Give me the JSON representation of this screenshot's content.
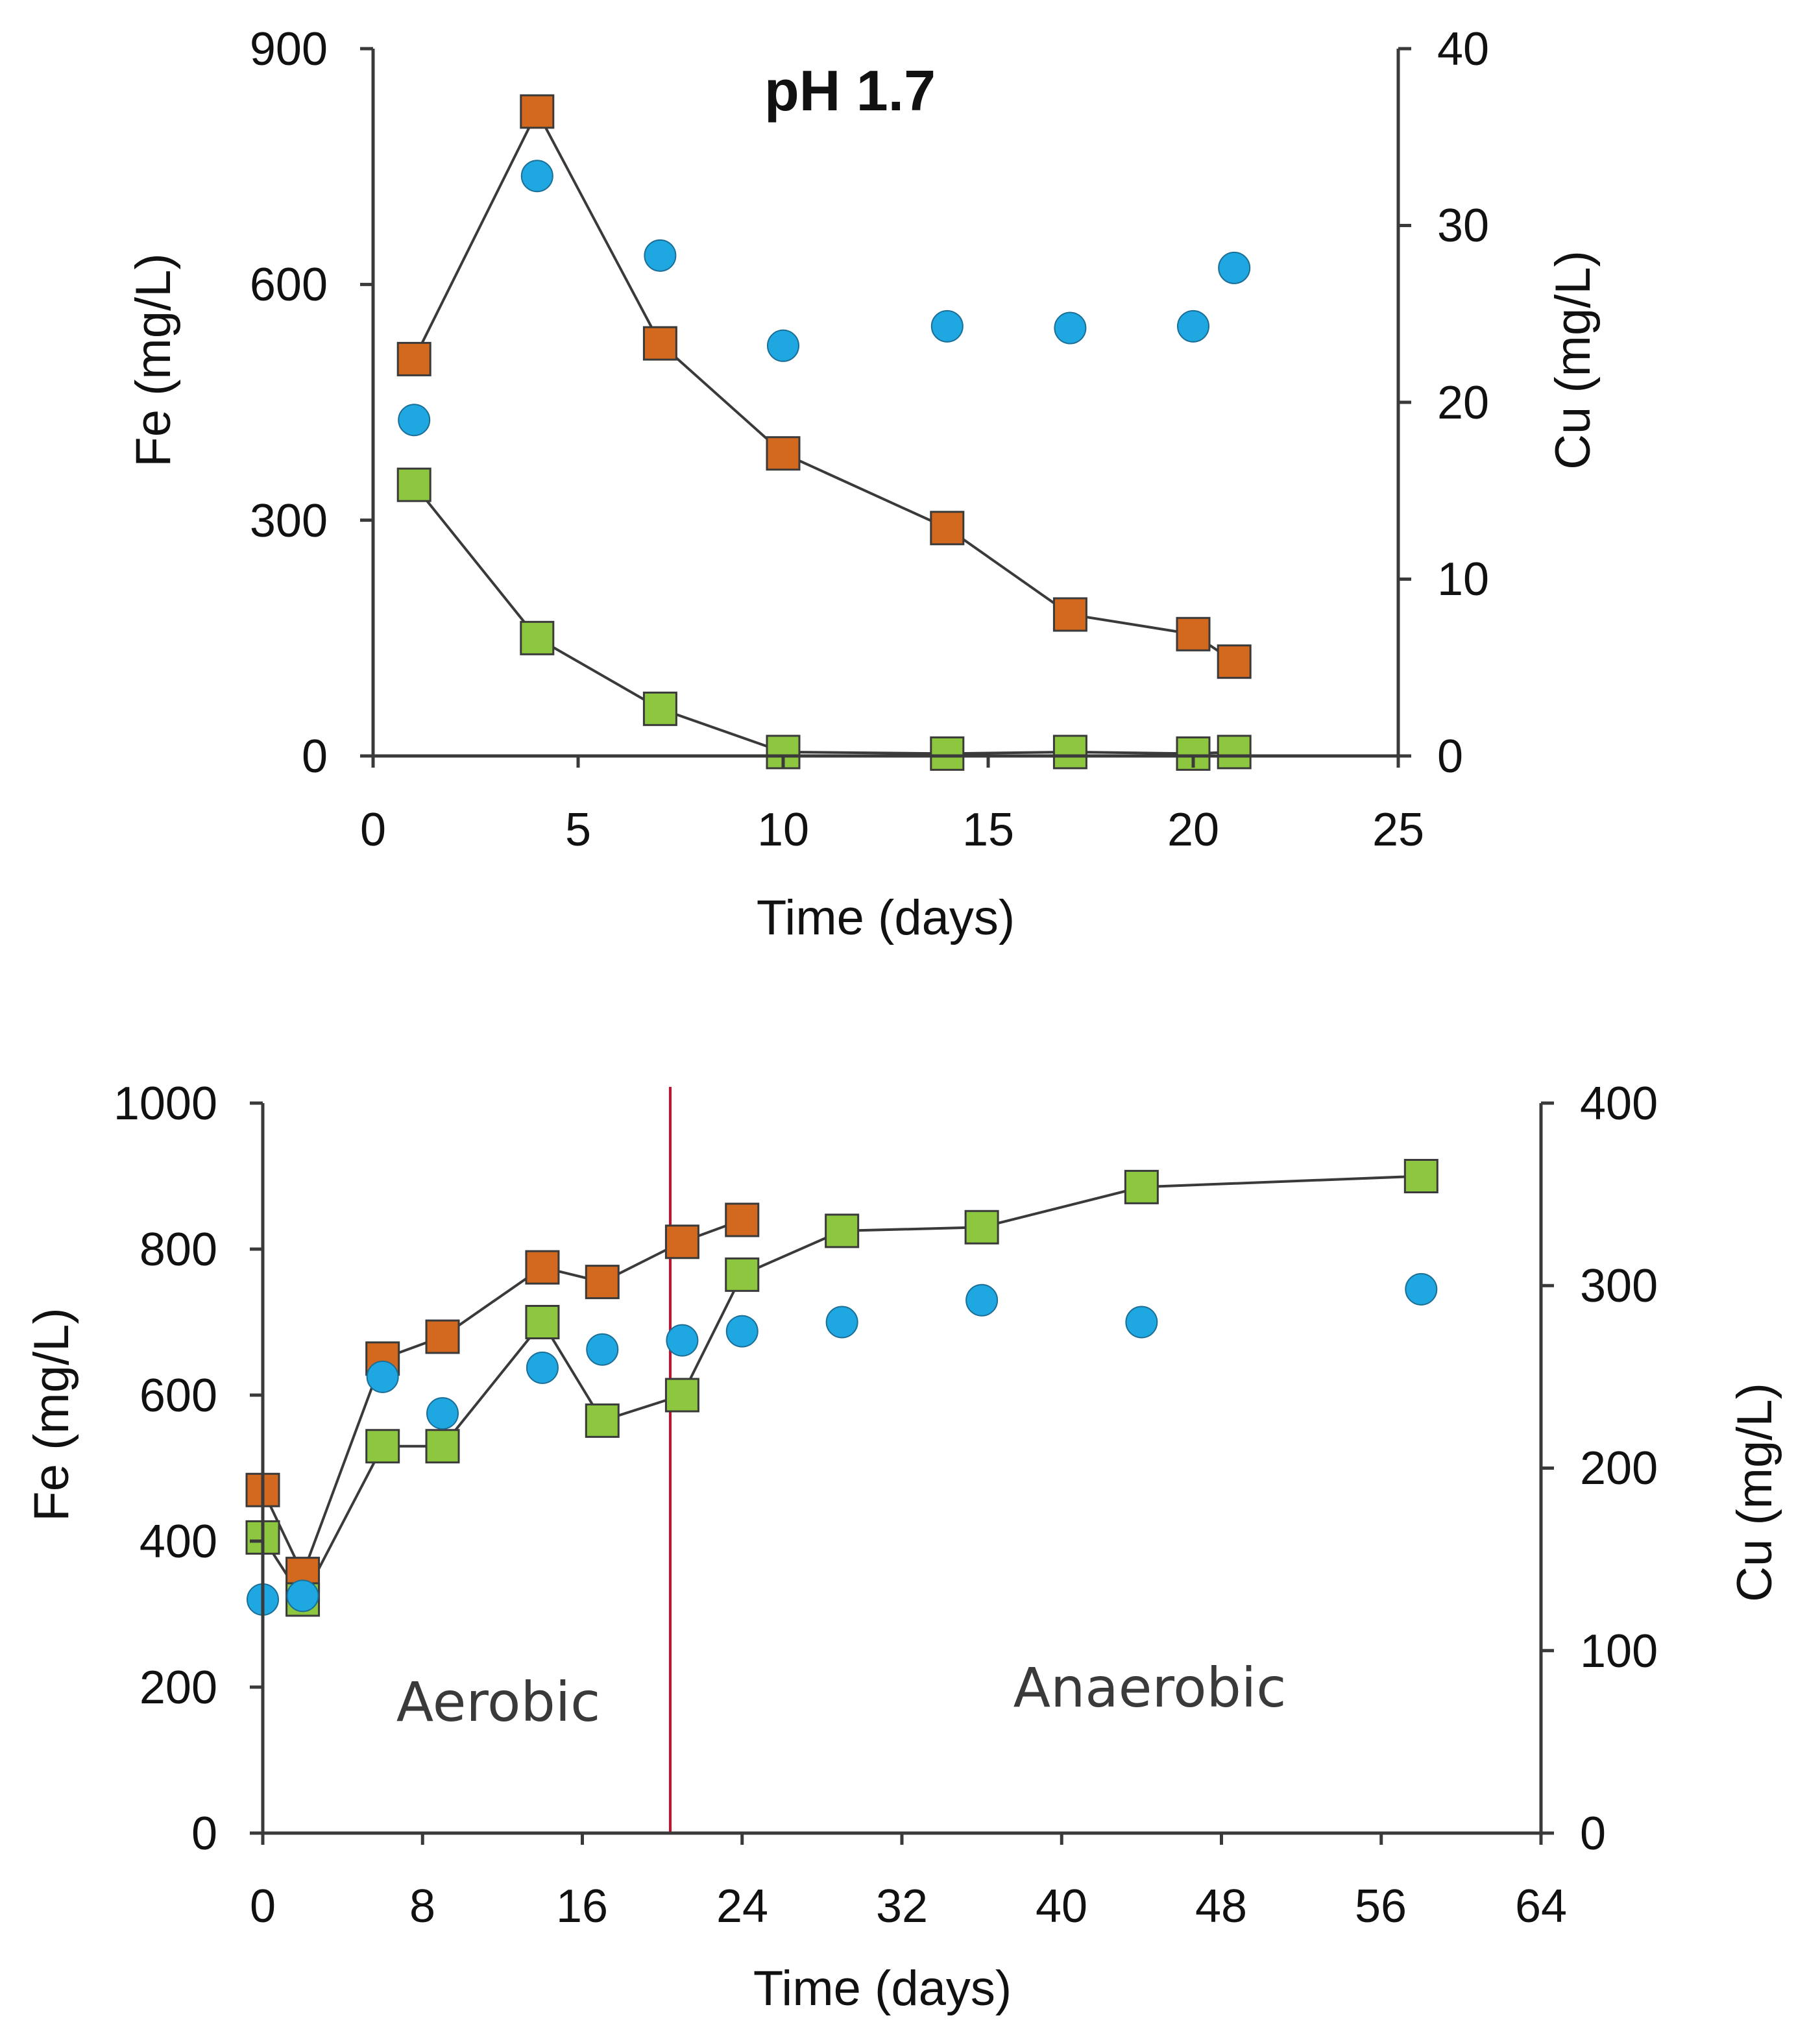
{
  "charts": [
    {
      "title": "pH 1.7",
      "xlabel": "Time (days)",
      "ylabel": "Fe (mg/L)",
      "y2label": "Cu (mg/L)",
      "x_ticks": [
        "0",
        "5",
        "10",
        "15",
        "20",
        "25"
      ],
      "y_ticks": [
        "0",
        "300",
        "600",
        "900"
      ],
      "y2_ticks": [
        "0",
        "10",
        "20",
        "30",
        "40"
      ]
    },
    {
      "title": "",
      "xlabel": "Time (days)",
      "ylabel": "Fe (mg/L)",
      "y2label": "Cu (mg/L)",
      "x_ticks": [
        "0",
        "8",
        "16",
        "24",
        "32",
        "40",
        "48",
        "56",
        "64"
      ],
      "y_ticks": [
        "0",
        "200",
        "400",
        "600",
        "800",
        "1000"
      ],
      "y2_ticks": [
        "0",
        "100",
        "200",
        "300",
        "400"
      ],
      "annotations": {
        "left": "Aerobic",
        "right": "Anaerobic"
      }
    }
  ],
  "chart_data": [
    {
      "type": "scatter",
      "title": "pH 1.7",
      "xlabel": "Time (days)",
      "ylabel": "Fe (mg/L)",
      "y2label": "Cu (mg/L)",
      "xlim": [
        0,
        25
      ],
      "ylim": [
        0,
        900
      ],
      "y2lim": [
        0,
        40
      ],
      "series": [
        {
          "name": "Fe (orange squares)",
          "marker": "square",
          "color": "#D2691E",
          "line": true,
          "axis": "left",
          "x": [
            1,
            4,
            7,
            10,
            14,
            17,
            20,
            21
          ],
          "y": [
            505,
            820,
            525,
            385,
            290,
            180,
            155,
            120
          ]
        },
        {
          "name": "Fe (green squares)",
          "marker": "square",
          "color": "#8DC63F",
          "line": true,
          "axis": "left",
          "x": [
            1,
            4,
            7,
            10,
            14,
            17,
            20,
            21
          ],
          "y": [
            345,
            150,
            60,
            5,
            3,
            5,
            3,
            5
          ]
        },
        {
          "name": "Cu (blue circles)",
          "marker": "circle",
          "color": "#1EA7E1",
          "line": false,
          "axis": "right",
          "x": [
            1,
            4,
            7,
            10,
            14,
            17,
            20,
            21
          ],
          "y": [
            19,
            32.8,
            28.3,
            23.2,
            24.3,
            24.2,
            24.3,
            27.6
          ]
        }
      ]
    },
    {
      "type": "scatter",
      "title": "",
      "xlabel": "Time (days)",
      "ylabel": "Fe (mg/L)",
      "y2label": "Cu (mg/L)",
      "xlim": [
        0,
        64
      ],
      "ylim": [
        0,
        1000
      ],
      "y2lim": [
        0,
        400
      ],
      "divider_x": 20.5,
      "annotations": [
        "Aerobic",
        "Anaerobic"
      ],
      "series": [
        {
          "name": "Fe (orange squares)",
          "marker": "square",
          "color": "#D2691E",
          "line": true,
          "axis": "left",
          "x": [
            0,
            2,
            6,
            9,
            14,
            17,
            21,
            24
          ],
          "y": [
            470,
            355,
            650,
            680,
            775,
            755,
            810,
            840
          ]
        },
        {
          "name": "Fe (green squares)",
          "marker": "square",
          "color": "#8DC63F",
          "line": true,
          "axis": "left",
          "x": [
            0,
            2,
            6,
            9,
            14,
            17,
            21,
            24,
            29,
            36,
            44,
            58
          ],
          "y": [
            405,
            320,
            530,
            530,
            700,
            565,
            600,
            765,
            825,
            830,
            885,
            900
          ]
        },
        {
          "name": "Cu (blue circles)",
          "marker": "circle",
          "color": "#1EA7E1",
          "line": false,
          "axis": "right",
          "x": [
            0,
            2,
            6,
            9,
            14,
            17,
            21,
            24,
            29,
            36,
            44,
            58
          ],
          "y": [
            128,
            130,
            250,
            230,
            255,
            265,
            270,
            275,
            280,
            292,
            280,
            298
          ]
        }
      ]
    }
  ]
}
